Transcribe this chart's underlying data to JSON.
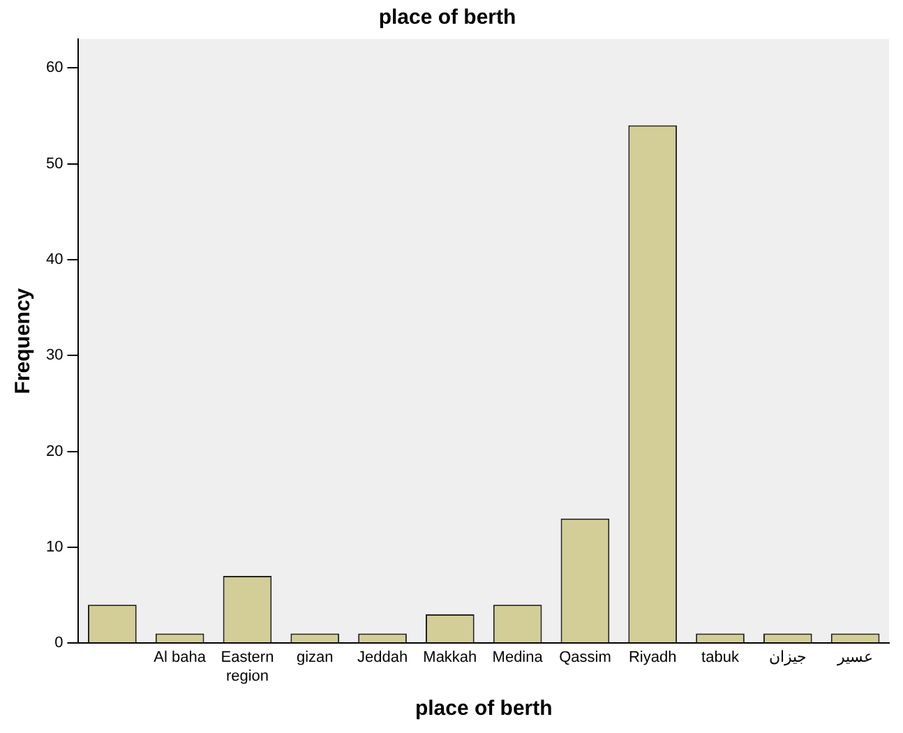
{
  "chart_data": {
    "type": "bar",
    "title": "place of berth",
    "xlabel": "place of berth",
    "ylabel": "Frequency",
    "categories": [
      null,
      "Al baha",
      "Eastern region",
      "gizan",
      "Jeddah",
      "Makkah",
      "Medina",
      "Qassim",
      "Riyadh",
      "tabuk",
      "جيزان",
      "عسير"
    ],
    "values": [
      4,
      1,
      7,
      1,
      1,
      3,
      4,
      13,
      54,
      1,
      1,
      1
    ],
    "color": "#d3ce97",
    "ylim": [
      0,
      63
    ],
    "yticks": [
      0,
      10,
      20,
      30,
      40,
      50,
      60
    ],
    "grid": false,
    "legend": false
  }
}
